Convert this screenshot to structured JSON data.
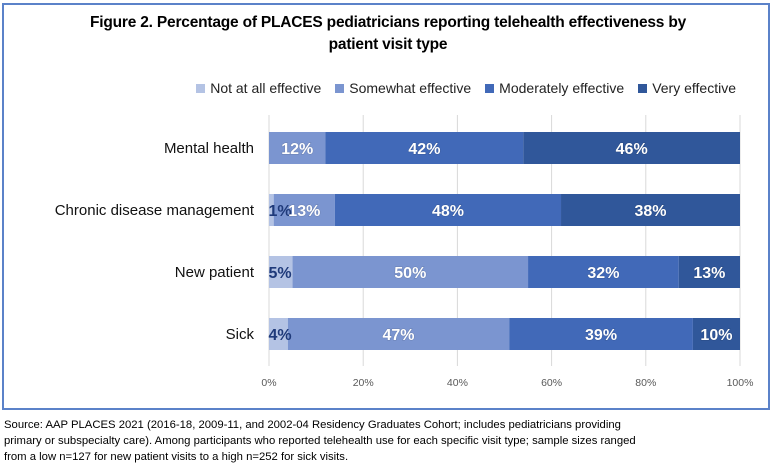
{
  "chart_data": {
    "type": "bar",
    "orientation": "horizontal",
    "stacked": true,
    "title": "Figure 2. Percentage of PLACES pediatricians reporting telehealth effectiveness by patient visit type",
    "title_lines": [
      "Figure 2. Percentage of PLACES pediatricians reporting telehealth effectiveness by",
      "patient visit type"
    ],
    "categories": [
      "Mental health",
      "Chronic disease management",
      "New patient",
      "Sick"
    ],
    "series": [
      {
        "name": "Not at all effective",
        "color": "#b4c3e4",
        "label_color": "#1f3a7a",
        "values": [
          0,
          1,
          5,
          4
        ]
      },
      {
        "name": "Somewhat effective",
        "color": "#7b95d0",
        "label_color": "#ffffff",
        "values": [
          12,
          13,
          50,
          47
        ]
      },
      {
        "name": "Moderately effective",
        "color": "#4169b8",
        "label_color": "#ffffff",
        "values": [
          42,
          48,
          32,
          39
        ]
      },
      {
        "name": "Very effective",
        "color": "#30579a",
        "label_color": "#ffffff",
        "values": [
          46,
          38,
          13,
          10
        ]
      }
    ],
    "xlim": [
      0,
      100
    ],
    "xticks": [
      0,
      20,
      40,
      60,
      80,
      100
    ],
    "xtick_labels": [
      "0%",
      "20%",
      "40%",
      "60%",
      "80%",
      "100%"
    ],
    "xlabel": "",
    "ylabel": "",
    "grid": "vertical",
    "legend_position": "top-right"
  },
  "source_note": "Source: AAP PLACES 2021 (2016-18, 2009-11, and 2002-04 Residency Graduates Cohort; includes pediatricians providing primary or subspecialty care). Among participants who reported telehealth use for each specific visit type; sample sizes ranged from a low n=127 for new patient visits to a high n=252 for sick visits.",
  "source_lines": [
    "Source: AAP PLACES 2021 (2016-18, 2009-11, and 2002-04 Residency Graduates Cohort; includes pediatricians providing",
    "primary or subspecialty care). Among participants who reported telehealth use for each specific visit type; sample sizes ranged",
    "from a low n=127 for new patient visits to a high n=252 for sick visits."
  ]
}
